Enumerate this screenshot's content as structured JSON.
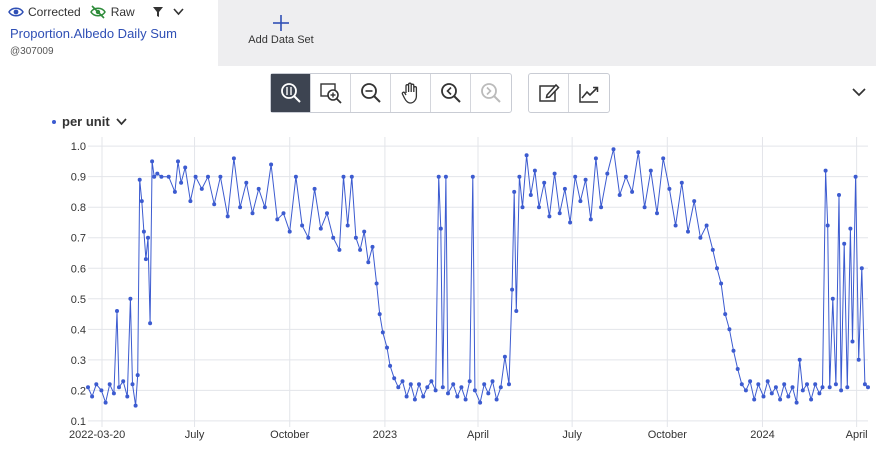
{
  "header": {
    "toggles": [
      {
        "label": "Corrected",
        "icon": "eye-icon"
      },
      {
        "label": "Raw",
        "icon": "eye-off-icon"
      }
    ],
    "series_title": "Proportion.Albedo Daily Sum",
    "series_sub": "@307009",
    "add_dataset_label": "Add Data Set"
  },
  "toolbar": {
    "group1": [
      "zoom-select-icon",
      "zoom-in-icon",
      "zoom-out-icon",
      "pan-hand-icon",
      "zoom-back-icon",
      "zoom-forward-icon"
    ],
    "group2": [
      "edit-icon",
      "trend-icon"
    ]
  },
  "colors": {
    "series": "#3c5bd0",
    "accent": "#2f4fb5",
    "toolbar_active": "#3d4451"
  },
  "unit_selector": {
    "label": "per unit"
  },
  "chart_data": {
    "type": "line",
    "x_type": "date",
    "xlim": [
      "2022-03-20",
      "2024-04-12"
    ],
    "ylim": [
      0.08,
      1.03
    ],
    "grid": true,
    "yticks": [
      0.1,
      0.2,
      0.3,
      0.4,
      0.5,
      0.6,
      0.7,
      0.8,
      0.9,
      1.0
    ],
    "ytick_labels": [
      "0.1",
      "0.2",
      "0.3",
      "0.4",
      "0.5",
      "0.6",
      "0.7",
      "0.8",
      "0.9",
      "1.0"
    ],
    "xticks": [
      {
        "date": "2022-03-20",
        "label": "2022-03-20"
      },
      {
        "date": "2022-07-01",
        "label": "July"
      },
      {
        "date": "2022-10-01",
        "label": "October"
      },
      {
        "date": "2023-01-01",
        "label": "2023"
      },
      {
        "date": "2023-04-01",
        "label": "April"
      },
      {
        "date": "2023-07-01",
        "label": "July"
      },
      {
        "date": "2023-10-01",
        "label": "October"
      },
      {
        "date": "2024-01-01",
        "label": "2024"
      },
      {
        "date": "2024-04-01",
        "label": "April"
      }
    ],
    "series": [
      {
        "points": [
          [
            "2022-03-20",
            0.21
          ],
          [
            "2022-03-24",
            0.18
          ],
          [
            "2022-03-28",
            0.22
          ],
          [
            "2022-04-02",
            0.2
          ],
          [
            "2022-04-06",
            0.16
          ],
          [
            "2022-04-10",
            0.22
          ],
          [
            "2022-04-14",
            0.19
          ],
          [
            "2022-04-17",
            0.46
          ],
          [
            "2022-04-19",
            0.21
          ],
          [
            "2022-04-23",
            0.23
          ],
          [
            "2022-04-27",
            0.18
          ],
          [
            "2022-04-30",
            0.5
          ],
          [
            "2022-05-02",
            0.22
          ],
          [
            "2022-05-05",
            0.15
          ],
          [
            "2022-05-07",
            0.25
          ],
          [
            "2022-05-09",
            0.89
          ],
          [
            "2022-05-11",
            0.82
          ],
          [
            "2022-05-13",
            0.72
          ],
          [
            "2022-05-15",
            0.63
          ],
          [
            "2022-05-17",
            0.7
          ],
          [
            "2022-05-19",
            0.42
          ],
          [
            "2022-05-21",
            0.95
          ],
          [
            "2022-05-23",
            0.9
          ],
          [
            "2022-05-26",
            0.91
          ],
          [
            "2022-05-30",
            0.9
          ],
          [
            "2022-06-06",
            0.9
          ],
          [
            "2022-06-12",
            0.85
          ],
          [
            "2022-06-15",
            0.95
          ],
          [
            "2022-06-18",
            0.88
          ],
          [
            "2022-06-22",
            0.93
          ],
          [
            "2022-06-27",
            0.82
          ],
          [
            "2022-07-02",
            0.9
          ],
          [
            "2022-07-08",
            0.86
          ],
          [
            "2022-07-14",
            0.9
          ],
          [
            "2022-07-20",
            0.81
          ],
          [
            "2022-07-26",
            0.9
          ],
          [
            "2022-08-02",
            0.77
          ],
          [
            "2022-08-08",
            0.96
          ],
          [
            "2022-08-14",
            0.8
          ],
          [
            "2022-08-20",
            0.88
          ],
          [
            "2022-08-26",
            0.78
          ],
          [
            "2022-09-01",
            0.86
          ],
          [
            "2022-09-07",
            0.8
          ],
          [
            "2022-09-13",
            0.94
          ],
          [
            "2022-09-19",
            0.76
          ],
          [
            "2022-09-25",
            0.78
          ],
          [
            "2022-10-01",
            0.72
          ],
          [
            "2022-10-07",
            0.9
          ],
          [
            "2022-10-13",
            0.74
          ],
          [
            "2022-10-19",
            0.7
          ],
          [
            "2022-10-25",
            0.86
          ],
          [
            "2022-10-31",
            0.73
          ],
          [
            "2022-11-06",
            0.78
          ],
          [
            "2022-11-12",
            0.7
          ],
          [
            "2022-11-18",
            0.66
          ],
          [
            "2022-11-22",
            0.9
          ],
          [
            "2022-11-26",
            0.74
          ],
          [
            "2022-11-30",
            0.9
          ],
          [
            "2022-12-04",
            0.7
          ],
          [
            "2022-12-08",
            0.66
          ],
          [
            "2022-12-12",
            0.72
          ],
          [
            "2022-12-16",
            0.62
          ],
          [
            "2022-12-20",
            0.67
          ],
          [
            "2022-12-24",
            0.55
          ],
          [
            "2022-12-27",
            0.45
          ],
          [
            "2022-12-30",
            0.39
          ],
          [
            "2023-01-03",
            0.34
          ],
          [
            "2023-01-06",
            0.28
          ],
          [
            "2023-01-10",
            0.24
          ],
          [
            "2023-01-14",
            0.21
          ],
          [
            "2023-01-18",
            0.23
          ],
          [
            "2023-01-22",
            0.18
          ],
          [
            "2023-01-26",
            0.22
          ],
          [
            "2023-01-30",
            0.17
          ],
          [
            "2023-02-03",
            0.22
          ],
          [
            "2023-02-07",
            0.18
          ],
          [
            "2023-02-11",
            0.21
          ],
          [
            "2023-02-15",
            0.23
          ],
          [
            "2023-02-19",
            0.2
          ],
          [
            "2023-02-22",
            0.9
          ],
          [
            "2023-02-24",
            0.73
          ],
          [
            "2023-02-26",
            0.21
          ],
          [
            "2023-03-01",
            0.9
          ],
          [
            "2023-03-03",
            0.19
          ],
          [
            "2023-03-08",
            0.22
          ],
          [
            "2023-03-12",
            0.18
          ],
          [
            "2023-03-16",
            0.21
          ],
          [
            "2023-03-20",
            0.17
          ],
          [
            "2023-03-24",
            0.23
          ],
          [
            "2023-03-27",
            0.9
          ],
          [
            "2023-03-29",
            0.2
          ],
          [
            "2023-04-03",
            0.16
          ],
          [
            "2023-04-07",
            0.22
          ],
          [
            "2023-04-11",
            0.19
          ],
          [
            "2023-04-15",
            0.23
          ],
          [
            "2023-04-19",
            0.17
          ],
          [
            "2023-04-23",
            0.21
          ],
          [
            "2023-04-27",
            0.31
          ],
          [
            "2023-05-01",
            0.22
          ],
          [
            "2023-05-04",
            0.53
          ],
          [
            "2023-05-06",
            0.85
          ],
          [
            "2023-05-08",
            0.46
          ],
          [
            "2023-05-11",
            0.9
          ],
          [
            "2023-05-14",
            0.8
          ],
          [
            "2023-05-18",
            0.97
          ],
          [
            "2023-05-22",
            0.84
          ],
          [
            "2023-05-26",
            0.92
          ],
          [
            "2023-05-30",
            0.8
          ],
          [
            "2023-06-04",
            0.88
          ],
          [
            "2023-06-09",
            0.77
          ],
          [
            "2023-06-14",
            0.91
          ],
          [
            "2023-06-19",
            0.78
          ],
          [
            "2023-06-24",
            0.86
          ],
          [
            "2023-06-29",
            0.75
          ],
          [
            "2023-07-04",
            0.9
          ],
          [
            "2023-07-09",
            0.82
          ],
          [
            "2023-07-14",
            0.89
          ],
          [
            "2023-07-19",
            0.76
          ],
          [
            "2023-07-24",
            0.96
          ],
          [
            "2023-07-29",
            0.8
          ],
          [
            "2023-08-04",
            0.91
          ],
          [
            "2023-08-10",
            0.99
          ],
          [
            "2023-08-16",
            0.84
          ],
          [
            "2023-08-22",
            0.9
          ],
          [
            "2023-08-28",
            0.85
          ],
          [
            "2023-09-03",
            0.98
          ],
          [
            "2023-09-09",
            0.8
          ],
          [
            "2023-09-15",
            0.92
          ],
          [
            "2023-09-21",
            0.78
          ],
          [
            "2023-09-27",
            0.96
          ],
          [
            "2023-10-03",
            0.86
          ],
          [
            "2023-10-09",
            0.74
          ],
          [
            "2023-10-15",
            0.88
          ],
          [
            "2023-10-21",
            0.72
          ],
          [
            "2023-10-27",
            0.82
          ],
          [
            "2023-11-02",
            0.7
          ],
          [
            "2023-11-08",
            0.74
          ],
          [
            "2023-11-14",
            0.66
          ],
          [
            "2023-11-18",
            0.6
          ],
          [
            "2023-11-22",
            0.55
          ],
          [
            "2023-11-26",
            0.45
          ],
          [
            "2023-11-30",
            0.4
          ],
          [
            "2023-12-04",
            0.33
          ],
          [
            "2023-12-08",
            0.27
          ],
          [
            "2023-12-12",
            0.22
          ],
          [
            "2023-12-16",
            0.2
          ],
          [
            "2023-12-20",
            0.23
          ],
          [
            "2023-12-24",
            0.17
          ],
          [
            "2023-12-28",
            0.22
          ],
          [
            "2024-01-02",
            0.18
          ],
          [
            "2024-01-06",
            0.23
          ],
          [
            "2024-01-10",
            0.19
          ],
          [
            "2024-01-14",
            0.21
          ],
          [
            "2024-01-18",
            0.17
          ],
          [
            "2024-01-22",
            0.22
          ],
          [
            "2024-01-26",
            0.18
          ],
          [
            "2024-01-30",
            0.21
          ],
          [
            "2024-02-03",
            0.16
          ],
          [
            "2024-02-06",
            0.3
          ],
          [
            "2024-02-09",
            0.2
          ],
          [
            "2024-02-13",
            0.22
          ],
          [
            "2024-02-17",
            0.17
          ],
          [
            "2024-02-21",
            0.22
          ],
          [
            "2024-02-25",
            0.19
          ],
          [
            "2024-02-28",
            0.21
          ],
          [
            "2024-03-02",
            0.92
          ],
          [
            "2024-03-04",
            0.74
          ],
          [
            "2024-03-06",
            0.21
          ],
          [
            "2024-03-09",
            0.5
          ],
          [
            "2024-03-12",
            0.22
          ],
          [
            "2024-03-15",
            0.84
          ],
          [
            "2024-03-17",
            0.2
          ],
          [
            "2024-03-20",
            0.68
          ],
          [
            "2024-03-23",
            0.21
          ],
          [
            "2024-03-26",
            0.73
          ],
          [
            "2024-03-28",
            0.36
          ],
          [
            "2024-03-31",
            0.9
          ],
          [
            "2024-04-03",
            0.3
          ],
          [
            "2024-04-06",
            0.6
          ],
          [
            "2024-04-09",
            0.22
          ],
          [
            "2024-04-12",
            0.21
          ]
        ]
      }
    ]
  }
}
